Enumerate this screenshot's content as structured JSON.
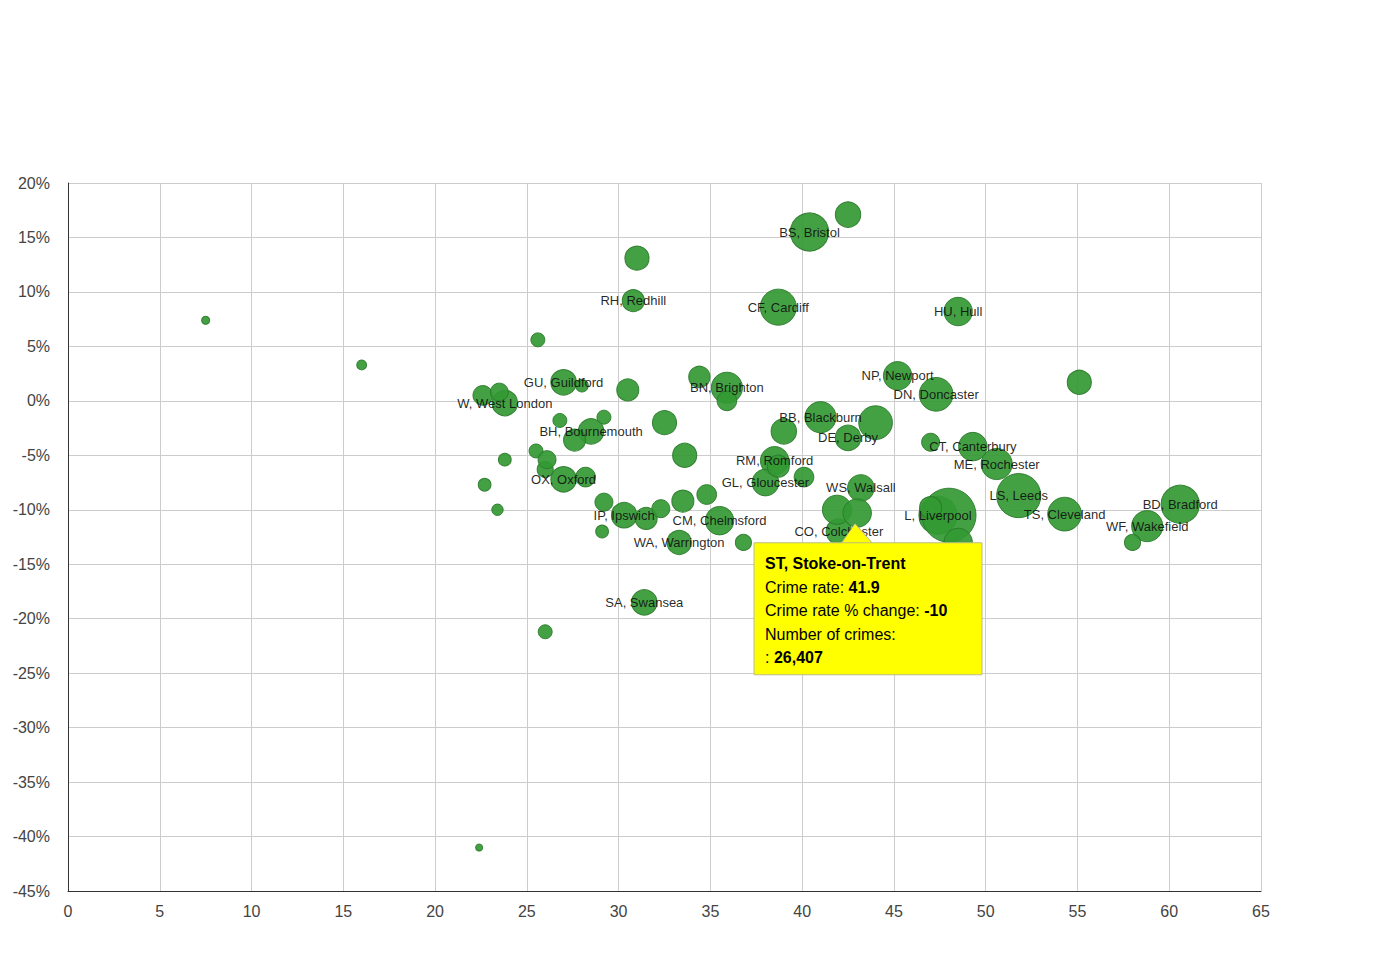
{
  "chart_data": {
    "type": "scatter",
    "marker": "circle",
    "color": "#339933",
    "grid": true,
    "xlim": [
      0,
      65
    ],
    "xticks": [
      0,
      5,
      10,
      15,
      20,
      25,
      30,
      35,
      40,
      45,
      50,
      55,
      60,
      65
    ],
    "ylim": [
      -45,
      20
    ],
    "yticks": [
      {
        "value": -45,
        "label": "-45%"
      },
      {
        "value": -40,
        "label": "-40%"
      },
      {
        "value": -35,
        "label": "-35%"
      },
      {
        "value": -30,
        "label": "-30%"
      },
      {
        "value": -25,
        "label": "-25%"
      },
      {
        "value": -20,
        "label": "-20%"
      },
      {
        "value": -15,
        "label": "-15%"
      },
      {
        "value": -10,
        "label": "-10%"
      },
      {
        "value": -5,
        "label": "-5%"
      },
      {
        "value": 0,
        "label": "0%"
      },
      {
        "value": 5,
        "label": "5%"
      },
      {
        "value": 10,
        "label": "10%"
      },
      {
        "value": 15,
        "label": "15%"
      },
      {
        "value": 20,
        "label": "20%"
      }
    ],
    "x": [
      7.5,
      16,
      22.4,
      42.5,
      40.4,
      31,
      30.8,
      38.7,
      48.5,
      25.6,
      45.2,
      47.3,
      55.1,
      27,
      35.9,
      34.4,
      30.5,
      23.8,
      22.6,
      23.5,
      28.5,
      27.6,
      32.5,
      39,
      41,
      42.5,
      44,
      49.3,
      50.6,
      38.5,
      27,
      38,
      43.2,
      51.8,
      60.6,
      54.3,
      58.8,
      58,
      30.3,
      31.5,
      35.5,
      33.3,
      42,
      41.9,
      43,
      47.4,
      48,
      48.5,
      31.4,
      26,
      22.7,
      23.4,
      23.8,
      25.5,
      26,
      26.1,
      26.8,
      28.2,
      29.2,
      29.1,
      29.2,
      28,
      32.3,
      33.5,
      34.8,
      35.9,
      33.6,
      38.7,
      40.1,
      47,
      47,
      36.8
    ],
    "values": [
      7.4,
      3.3,
      -41,
      17.1,
      15.5,
      13.1,
      9.2,
      8.6,
      8.2,
      5.6,
      2.3,
      0.6,
      1.7,
      1.7,
      1.2,
      2.2,
      1,
      -0.2,
      0.5,
      0.8,
      -2.8,
      -3.6,
      -2,
      -2.8,
      -1.5,
      -3.4,
      -2,
      -4.2,
      -5.8,
      -5.5,
      -7.2,
      -7.5,
      -8,
      -8.7,
      -9.5,
      -10.4,
      -11.5,
      -13,
      -10.5,
      -10.8,
      -11,
      -13,
      -12,
      -10,
      -10.3,
      -10.5,
      -10.5,
      -13,
      -18.5,
      -21.2,
      -7.7,
      -10,
      -5.4,
      -4.6,
      -6.3,
      -5.4,
      -1.8,
      -7,
      -9.3,
      -12,
      -1.5,
      1.4,
      -9.9,
      -9.2,
      -8.6,
      0,
      -5,
      -6,
      -7,
      -9.8,
      -3.8,
      -13
    ],
    "crimes": [
      2000,
      3000,
      1500,
      20000,
      45000,
      18000,
      15000,
      40000,
      25000,
      6000,
      25000,
      35000,
      18000,
      20000,
      30000,
      14000,
      15000,
      20000,
      12000,
      10000,
      20000,
      15000,
      18000,
      20000,
      30000,
      20000,
      35000,
      25000,
      30000,
      25000,
      20000,
      22000,
      22000,
      60000,
      45000,
      35000,
      30000,
      8000,
      20000,
      15000,
      25000,
      18000,
      20000,
      26407,
      25000,
      45000,
      90000,
      25000,
      20000,
      6000,
      5000,
      4000,
      5000,
      6000,
      8000,
      10000,
      6000,
      12000,
      10000,
      5000,
      6000,
      5000,
      10000,
      15000,
      12000,
      12000,
      18000,
      15000,
      12000,
      15000,
      10000,
      8000
    ],
    "labels": [
      null,
      null,
      null,
      null,
      "BS, Bristol",
      null,
      "RH, Redhill",
      "CF, Cardiff",
      "HU, Hull",
      null,
      "NP, Newport",
      "DN, Doncaster",
      null,
      "GU, Guildford",
      "BN, Brighton",
      null,
      null,
      "W, West London",
      null,
      null,
      "BH, Bournemouth",
      null,
      null,
      null,
      "BB, Blackburn",
      "DE, Derby",
      null,
      "CT, Canterbury",
      "ME, Rochester",
      "RM, Romford",
      "OX, Oxford",
      "GL, Gloucester",
      "WS, Walsall",
      "LS, Leeds",
      "BD, Bradford",
      "TS, Cleveland",
      "WF, Wakefield",
      null,
      "IP, Ipswich",
      null,
      "CM, Chelmsford",
      "WA, Warrington",
      "CO, Colchester",
      "ST, Stoke-on-Trent",
      null,
      "L, Liverpool",
      null,
      null,
      "SA, Swansea",
      null,
      null,
      null,
      null,
      null,
      null,
      null,
      null,
      null,
      null,
      null,
      null,
      null,
      null,
      null,
      null,
      null,
      null,
      null,
      null,
      null,
      null,
      null
    ],
    "tooltip": {
      "title": "ST, Stoke-on-Trent",
      "lines": [
        [
          "Crime rate: ",
          "41.9"
        ],
        [
          "Crime rate % change: ",
          "-10"
        ],
        [
          "Number of crimes:"
        ],
        [
          ": ",
          "26,407"
        ]
      ]
    }
  }
}
